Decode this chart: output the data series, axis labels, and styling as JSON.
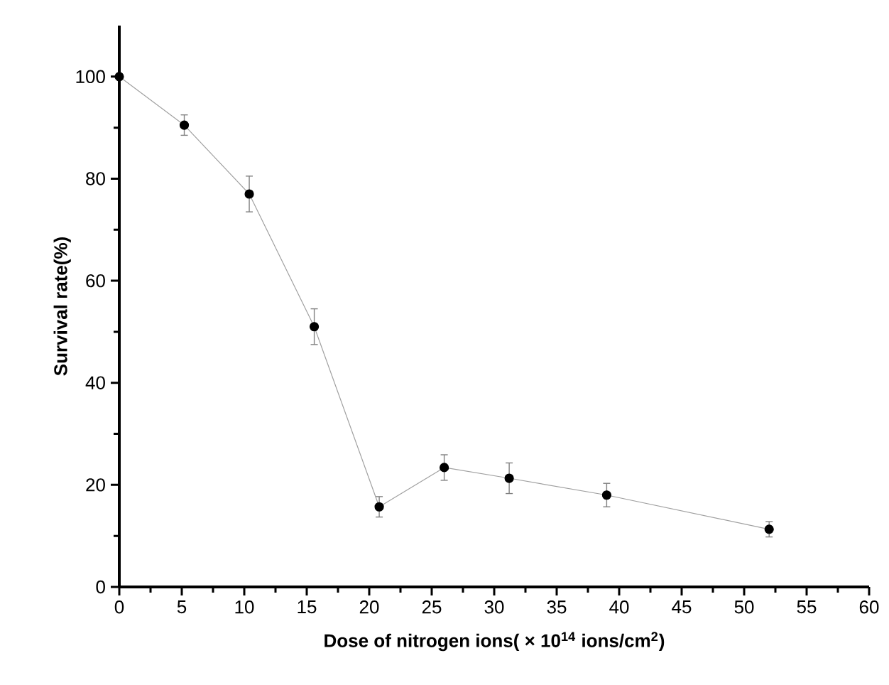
{
  "chart_data": {
    "type": "line",
    "xlabel": "Dose of nitrogen ions( × 10$^{14}$ ions/cm$^{2}$)",
    "ylabel": "Survival rate(%)",
    "x": [
      0,
      5.2,
      10.4,
      15.6,
      20.8,
      26,
      31.2,
      39,
      52
    ],
    "series": [
      {
        "color": "#a0a0a0",
        "values": [
          100,
          90.5,
          77,
          51,
          15.7,
          23.4,
          21.3,
          18,
          11.3
        ],
        "errors": [
          null,
          2,
          3.5,
          3.5,
          2,
          2.5,
          3,
          2.3,
          1.5
        ]
      }
    ],
    "xlim": [
      0,
      60
    ],
    "ylim": [
      0,
      110
    ],
    "xticks": [
      0,
      5,
      10,
      15,
      20,
      25,
      30,
      35,
      40,
      45,
      50,
      55,
      60
    ],
    "yticks": [
      0,
      20,
      40,
      60,
      80,
      100
    ],
    "marker": "circle",
    "line_style": "solid"
  }
}
